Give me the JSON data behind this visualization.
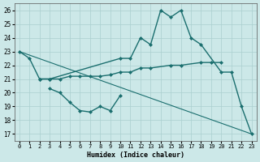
{
  "xlabel": "Humidex (Indice chaleur)",
  "xlim": [
    -0.5,
    23.5
  ],
  "ylim": [
    16.5,
    26.5
  ],
  "yticks": [
    17,
    18,
    19,
    20,
    21,
    22,
    23,
    24,
    25,
    26
  ],
  "xticks": [
    0,
    1,
    2,
    3,
    4,
    5,
    6,
    7,
    8,
    9,
    10,
    11,
    12,
    13,
    14,
    15,
    16,
    17,
    18,
    19,
    20,
    21,
    22,
    23
  ],
  "bg_color": "#cce8e8",
  "grid_color": "#aacfcf",
  "line_color": "#1a6e6e",
  "series": [
    {
      "x": [
        0,
        1,
        2,
        3,
        10,
        11,
        12,
        13,
        14,
        15,
        16,
        17,
        18,
        20,
        21,
        22,
        23
      ],
      "y": [
        23.0,
        22.5,
        21.0,
        21.0,
        22.5,
        22.5,
        24.0,
        23.5,
        26.0,
        25.5,
        26.0,
        24.0,
        23.5,
        21.5,
        21.5,
        19.0,
        17.0
      ],
      "marker": "D",
      "markersize": 2.0,
      "linewidth": 1.0,
      "connect": false
    },
    {
      "x": [
        2,
        3,
        4,
        5,
        6,
        7,
        8,
        9,
        10,
        11,
        12,
        13,
        15,
        16,
        18,
        19,
        20
      ],
      "y": [
        21.0,
        21.0,
        21.0,
        21.2,
        21.2,
        21.2,
        21.2,
        21.3,
        21.5,
        21.5,
        21.8,
        21.8,
        22.0,
        22.0,
        22.2,
        22.2,
        22.2
      ],
      "marker": "D",
      "markersize": 2.0,
      "linewidth": 1.0,
      "connect": true
    },
    {
      "x": [
        3,
        4,
        5,
        6,
        7,
        8,
        9,
        10
      ],
      "y": [
        20.3,
        20.0,
        19.3,
        18.7,
        18.6,
        19.0,
        18.7,
        19.8
      ],
      "marker": "D",
      "markersize": 2.0,
      "linewidth": 1.0,
      "connect": true
    },
    {
      "x": [
        0,
        23
      ],
      "y": [
        23.0,
        17.0
      ],
      "marker": null,
      "markersize": 0,
      "linewidth": 0.8,
      "connect": true
    }
  ]
}
